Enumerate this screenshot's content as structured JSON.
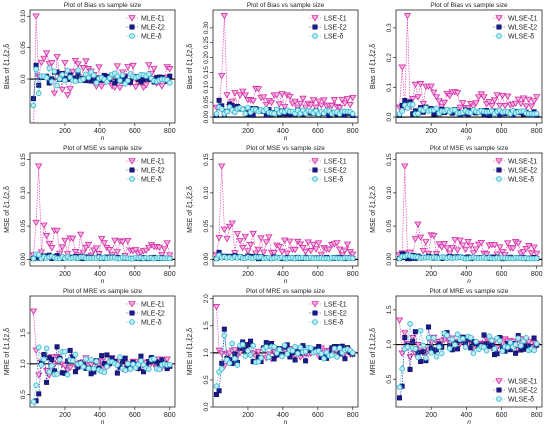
{
  "series_colors": {
    "xi1": "#d62ba8",
    "xi2": "#1a1a8c",
    "delta": "#2ab7cf"
  },
  "series_markers": {
    "xi1": "triangle-down",
    "xi2": "square",
    "delta": "circle"
  },
  "chart_data": [
    {
      "type": "scatter",
      "row": 0,
      "col": 0,
      "title": "Plot of Bias vs sample size",
      "xlabel": "n",
      "ylabel": "Bias of ξ1,ξ2,δ",
      "xlim": [
        0,
        830
      ],
      "ylim": [
        -0.07,
        0.11
      ],
      "yticks": [
        0,
        0.05,
        0.1
      ],
      "yticklabels": [
        "0.0",
        "0.05",
        "0.10"
      ],
      "xticks": [
        200,
        400,
        600,
        800
      ],
      "legend_position": "top-right",
      "legend_labels": [
        "MLE-ξ1",
        "MLE-ξ2",
        "MLE-δ"
      ],
      "metric": "bias",
      "series": [
        "xi1",
        "xi2",
        "delta"
      ]
    },
    {
      "type": "scatter",
      "row": 0,
      "col": 1,
      "title": "Plot of Bias vs sample size",
      "xlabel": "n",
      "ylabel": "Bias of ξ1,ξ2,δ",
      "xlim": [
        0,
        830
      ],
      "ylim": [
        -0.02,
        0.36
      ],
      "yticks": [
        0,
        0.05,
        0.1,
        0.15,
        0.2,
        0.25,
        0.3
      ],
      "yticklabels": [
        "0.00",
        "0.05",
        "0.10",
        "0.15",
        "0.20",
        "0.25",
        "0.30"
      ],
      "xticks": [
        200,
        400,
        600,
        800
      ],
      "legend_position": "top-right",
      "legend_labels": [
        "LSE-ξ1",
        "LSE-ξ2",
        "LSE-δ"
      ],
      "metric": "bias",
      "series": [
        "xi1",
        "xi2",
        "delta"
      ]
    },
    {
      "type": "scatter",
      "row": 0,
      "col": 2,
      "title": "Plot of Bias vs sample size",
      "xlabel": "n",
      "ylabel": "Bias of ξ1,ξ2,δ",
      "xlim": [
        0,
        830
      ],
      "ylim": [
        -0.02,
        0.36
      ],
      "yticks": [
        0,
        0.1,
        0.2,
        0.3
      ],
      "yticklabels": [
        "0.0",
        "0.1",
        "0.2",
        "0.3"
      ],
      "xticks": [
        200,
        400,
        600,
        800
      ],
      "legend_position": "top-right",
      "legend_labels": [
        "WLSE-ξ1",
        "WLSE-ξ2",
        "WLSE-δ"
      ],
      "metric": "bias",
      "series": [
        "xi1",
        "xi2",
        "delta"
      ]
    },
    {
      "type": "scatter",
      "row": 1,
      "col": 0,
      "title": "Plot of MSE vs sample size",
      "xlabel": "n",
      "ylabel": "MSE of ξ1,ξ2,δ",
      "xlim": [
        0,
        830
      ],
      "ylim": [
        -0.01,
        0.16
      ],
      "yticks": [
        0,
        0.05,
        0.1,
        0.15
      ],
      "yticklabels": [
        "0.00",
        "0.05",
        "0.10",
        "0.15"
      ],
      "xticks": [
        200,
        400,
        600,
        800
      ],
      "legend_position": "top-right",
      "legend_labels": [
        "MLE-ξ1",
        "MLE-ξ2",
        "MLE-δ"
      ],
      "metric": "mse",
      "series": [
        "xi1",
        "xi2",
        "delta"
      ]
    },
    {
      "type": "scatter",
      "row": 1,
      "col": 1,
      "title": "Plot of MSE vs sample size",
      "xlabel": "n",
      "ylabel": "MSE of ξ1,ξ2,δ",
      "xlim": [
        0,
        830
      ],
      "ylim": [
        -0.01,
        0.16
      ],
      "yticks": [
        0,
        0.05,
        0.1,
        0.15
      ],
      "yticklabels": [
        "0.00",
        "0.05",
        "0.10",
        "0.15"
      ],
      "xticks": [
        200,
        400,
        600,
        800
      ],
      "legend_position": "top-right",
      "legend_labels": [
        "LSE-ξ1",
        "LSE-ξ2",
        "LSE-δ"
      ],
      "metric": "mse",
      "series": [
        "xi1",
        "xi2",
        "delta"
      ]
    },
    {
      "type": "scatter",
      "row": 1,
      "col": 2,
      "title": "Plot of MSE vs sample size",
      "xlabel": "n",
      "ylabel": "MSE of ξ1,ξ2,δ",
      "xlim": [
        0,
        830
      ],
      "ylim": [
        -0.01,
        0.16
      ],
      "yticks": [
        0,
        0.05,
        0.1,
        0.15
      ],
      "yticklabels": [
        "0.00",
        "0.05",
        "0.10",
        "0.15"
      ],
      "xticks": [
        200,
        400,
        600,
        800
      ],
      "legend_position": "top-right",
      "legend_labels": [
        "WLSE-ξ1",
        "WLSE-ξ2",
        "WLSE-δ"
      ],
      "metric": "mse",
      "series": [
        "xi1",
        "xi2",
        "delta"
      ]
    },
    {
      "type": "scatter",
      "row": 2,
      "col": 0,
      "title": "Plot of MRE vs sample size",
      "xlabel": "n",
      "ylabel": "MRE of ξ1,ξ2,δ",
      "xlim": [
        0,
        830
      ],
      "ylim": [
        0.3,
        2.1
      ],
      "yticks": [
        0.5,
        1,
        1.5
      ],
      "yticklabels": [
        "0.5",
        "1.0",
        "1.5"
      ],
      "xticks": [
        200,
        400,
        600,
        800
      ],
      "legend_position": "top-right",
      "legend_labels": [
        "MLE-ξ1",
        "MLE-ξ2",
        "MLE-δ"
      ],
      "metric": "mre",
      "series": [
        "xi1",
        "xi2",
        "delta"
      ]
    },
    {
      "type": "scatter",
      "row": 2,
      "col": 1,
      "title": "Plot of MRE vs sample size",
      "xlabel": "n",
      "ylabel": "MRE of ξ1,ξ2,δ",
      "xlim": [
        0,
        830
      ],
      "ylim": [
        0,
        2.05
      ],
      "yticks": [
        0,
        0.5,
        1,
        1.5,
        2
      ],
      "yticklabels": [
        "0.0",
        "0.5",
        "1.0",
        "1.5",
        "2.0"
      ],
      "xticks": [
        200,
        400,
        600,
        800
      ],
      "legend_position": "top-right",
      "legend_labels": [
        "LSE-ξ1",
        "LSE-ξ2",
        "LSE-δ"
      ],
      "metric": "mre",
      "series": [
        "xi1",
        "xi2",
        "delta"
      ]
    },
    {
      "type": "scatter",
      "row": 2,
      "col": 2,
      "title": "Plot of MRE vs sample size",
      "xlabel": "n",
      "ylabel": "MRE of ξ1,ξ2,δ",
      "xlim": [
        0,
        830
      ],
      "ylim": [
        0.1,
        1.7
      ],
      "yticks": [
        0.5,
        1,
        1.5
      ],
      "yticklabels": [
        "0.5",
        "1.0",
        "1.5"
      ],
      "xticks": [
        200,
        400,
        600,
        800
      ],
      "legend_position": "bottom-right",
      "legend_labels": [
        "WLSE-ξ1",
        "WLSE-ξ2",
        "WLSE-δ"
      ],
      "metric": "mre",
      "series": [
        "xi1",
        "xi2",
        "delta"
      ]
    }
  ]
}
